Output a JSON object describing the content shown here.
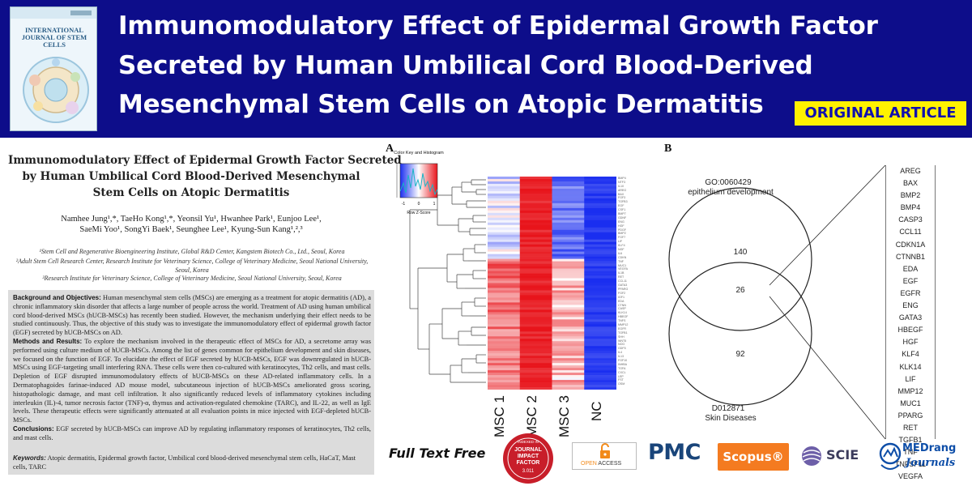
{
  "banner": {
    "title_lines": [
      "Immunomodulatory Effect of Epidermal Growth Factor",
      "Secreted by Human Umbilical Cord Blood-Derived",
      "Mesenchymal Stem Cells on Atopic Dermatitis"
    ],
    "badge": "ORIGINAL ARTICLE",
    "cover_journal": [
      "INTERNATIONAL",
      "JOURNAL OF STEM CELLS"
    ],
    "background_color": "#0d0d8a",
    "badge_color": "#fff200"
  },
  "paper": {
    "title_lines": [
      "Immunomodulatory Effect of Epidermal Growth Factor Secreted",
      "by Human Umbilical Cord Blood-Derived Mesenchymal",
      "Stem Cells on Atopic Dermatitis"
    ],
    "authors_lines": [
      "Namhee Jung¹,*, TaeHo Kong¹,*, Yeonsil Yu¹, Hwanhee Park¹, Eunjoo Lee¹,",
      "SaeMi Yoo¹, SongYi Baek¹, Seunghee Lee¹, Kyung-Sun Kang¹,²,³"
    ],
    "affiliations": [
      "¹Stem Cell and Regenerative Bioengineering Institute, Global R&D Center, Kangstem Biotech Co., Ltd., Seoul, Korea",
      "²Adult Stem Cell Research Center, Research Institute for Veterinary Science, College of Veterinary Medicine, Seoul National University, Seoul, Korea",
      "³Research Institute for Veterinary Science, College of Veterinary Medicine, Seoul National University, Seoul, Korea"
    ],
    "abstract": {
      "background_heading": "Background and Objectives:",
      "background_text": "Human mesenchymal stem cells (MSCs) are emerging as a treatment for atopic dermatitis (AD), a chronic inflammatory skin disorder that affects a large number of people across the world. Treatment of AD using human umbilical cord blood-derived MSCs (hUCB-MSCs) has recently been studied. However, the mechanism underlying their effect needs to be studied continuously. Thus, the objective of this study was to investigate the immunomodulatory effect of epidermal growth factor (EGF) secreted by hUCB-MSCs on AD.",
      "methods_heading": "Methods and Results:",
      "methods_text": "To explore the mechanism involved in the therapeutic effect of MSCs for AD, a secretome array was performed using culture medium of hUCB-MSCs. Among the list of genes common for epithelium development and skin diseases, we focused on the function of EGF. To elucidate the effect of EGF secreted by hUCB-MSCs, EGF was downregulated in hUCB-MSCs using EGF-targeting small interfering RNA. These cells were then co-cultured with keratinocytes, Th2 cells, and mast cells. Depletion of EGF disrupted immunomodulatory effects of hUCB-MSCs on these AD-related inflammatory cells. In a Dermatophagoides farinae-induced AD mouse model, subcutaneous injection of hUCB-MSCs ameliorated gross scoring, histopathologic damage, and mast cell infiltration. It also significantly reduced levels of inflammatory cytokines including interleukin (IL)-4, tumor necrosis factor (TNF)-α, thymus and activation-regulated chemokine (TARC), and IL-22, as well as IgE levels. These therapeutic effects were significantly attenuated at all evaluation points in mice injected with EGF-depleted hUCB-MSCs.",
      "conclusions_heading": "Conclusions:",
      "conclusions_text": "EGF secreted by hUCB-MSCs can improve AD by regulating inflammatory responses of keratinocytes, Th2 cells, and mast cells.",
      "keywords_heading": "Keywords:",
      "keywords_text": "Atopic dermatitis, Epidermal growth factor, Umbilical cord blood-derived mesenchymal stem cells, HaCaT, Mast cells, TARC"
    }
  },
  "figure_a": {
    "panel_label": "A",
    "color_key_title": "Color Key and Histogram",
    "color_key_ticks": [
      "-1",
      "0",
      "1"
    ],
    "color_key_xlabel": "Row Z-Score",
    "columns": [
      "MSC 1",
      "MSC 2",
      "MSC 3",
      "NC"
    ],
    "high_color": "#e8141b",
    "low_color": "#1a2ef0",
    "row_labels": [
      "BMP4",
      "NTF3",
      "IL10",
      "AREG",
      "BAX",
      "FGF3",
      "TGFB3",
      "EGF",
      "CSF1",
      "BMP7",
      "GDNF",
      "ENG",
      "HGF",
      "PDGF",
      "BMP2",
      "FGF7",
      "LIF",
      "KLF4",
      "NGF",
      "IL6",
      "CDKN",
      "TNF",
      "MUC1",
      "VEGFA",
      "IL1B",
      "RET",
      "CCL11",
      "GATA3",
      "PPARG",
      "FGF2",
      "IGF1",
      "EDA",
      "CTNN",
      "CASP",
      "KLK14",
      "HBEGF",
      "TNFS",
      "MMP12",
      "EGFR",
      "TGFB1",
      "SHH",
      "WNT5",
      "NOG",
      "GDF5",
      "IL4",
      "IL13",
      "FGF10",
      "INHBA",
      "TGFA",
      "CXCL",
      "LEP",
      "FST",
      "OSM"
    ]
  },
  "figure_b": {
    "panel_label": "B",
    "set_1": {
      "id": "GO:0060429",
      "name": "epithelium development",
      "unique_count": "140"
    },
    "overlap_count": "26",
    "set_2": {
      "id": "D012871",
      "name": "Skin Diseases",
      "unique_count": "92"
    },
    "genes": [
      "AREG",
      "BAX",
      "BMP2",
      "BMP4",
      "CASP3",
      "CCL11",
      "CDKN1A",
      "CTNNB1",
      "EDA",
      "EGF",
      "EGFR",
      "ENG",
      "GATA3",
      "HBEGF",
      "HGF",
      "KLF4",
      "KLK14",
      "LIF",
      "MMP12",
      "MUC1",
      "PPARG",
      "RET",
      "TGFB1",
      "TNF",
      "TNFSF11",
      "VEGFA"
    ]
  },
  "footer": {
    "full_text": "Full Text Free",
    "jif_seal_lines": [
      "INDEXED IN",
      "JOURNAL",
      "IMPACT",
      "FACTOR",
      "3.011"
    ],
    "open_access": [
      "OPEN",
      "ACCESS"
    ],
    "pmc": "PMC",
    "scopus": "Scopus®",
    "scie": "SCIE",
    "medrang": [
      "MEDrang",
      "Journals"
    ]
  }
}
